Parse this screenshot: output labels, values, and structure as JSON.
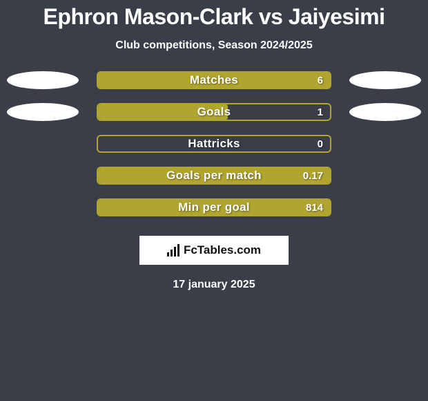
{
  "title": "Ephron Mason-Clark vs Jaiyesimi",
  "subtitle": "Club competitions, Season 2024/2025",
  "footer": {
    "logo_text": "FcTables.com",
    "date": "17 january 2025"
  },
  "style": {
    "background_color": "#3a3e48",
    "bar_border_color": "#b0a52f",
    "bar_fill_color": "#b0a52f",
    "ellipse_color": "#ffffff",
    "text_color": "#ffffff",
    "title_fontsize": 32,
    "subtitle_fontsize": 16,
    "bar_label_fontsize": 17,
    "bar_value_fontsize": 15,
    "bar_track_width": 340,
    "bar_track_height": 26,
    "ellipse_width": 104,
    "ellipse_height": 26
  },
  "rows": [
    {
      "label": "Matches",
      "value": "6",
      "fill_pct": 100,
      "left_ellipse": true,
      "right_ellipse": true
    },
    {
      "label": "Goals",
      "value": "1",
      "fill_pct": 56,
      "left_ellipse": true,
      "right_ellipse": true
    },
    {
      "label": "Hattricks",
      "value": "0",
      "fill_pct": 0,
      "left_ellipse": false,
      "right_ellipse": false
    },
    {
      "label": "Goals per match",
      "value": "0.17",
      "fill_pct": 100,
      "left_ellipse": false,
      "right_ellipse": false
    },
    {
      "label": "Min per goal",
      "value": "814",
      "fill_pct": 100,
      "left_ellipse": false,
      "right_ellipse": false
    }
  ]
}
